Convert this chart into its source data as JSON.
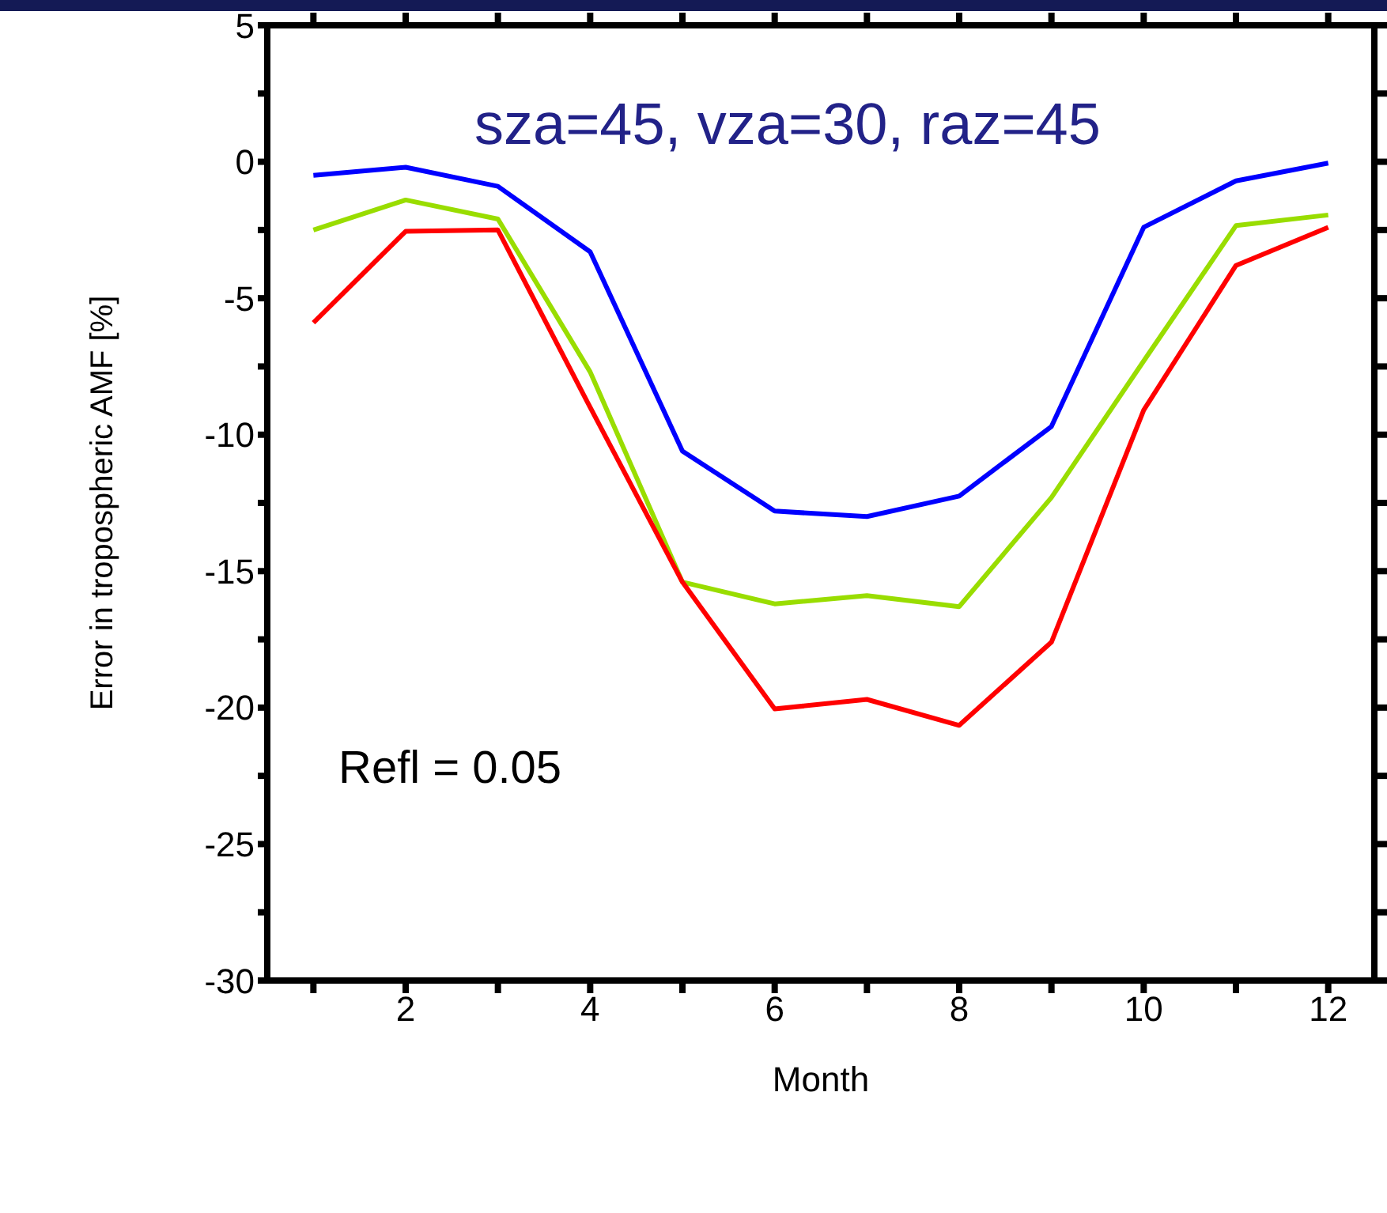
{
  "chart_data": {
    "type": "line",
    "ylabel": "Error in tropospheric AMF [%]",
    "xlabel": "Month",
    "annotations": [
      "sza=45, vza=30, raz=45",
      "Refl = 0.05"
    ],
    "x": [
      1,
      2,
      3,
      4,
      5,
      6,
      7,
      8,
      9,
      10,
      11,
      12
    ],
    "series": [
      {
        "color": "#0000ff",
        "values": [
          -0.5,
          -0.2,
          -0.9,
          -3.3,
          -10.6,
          -12.8,
          -13.0,
          -12.25,
          -9.7,
          -2.4,
          -0.7,
          -0.05
        ]
      },
      {
        "color": "#99dd00",
        "values": [
          -2.5,
          -1.4,
          -2.1,
          -7.7,
          -15.4,
          -16.2,
          -15.9,
          -16.3,
          -12.3,
          -7.3,
          -2.34,
          -1.95
        ]
      },
      {
        "color": "#ff0000",
        "values": [
          -5.9,
          -2.55,
          -2.5,
          -9.0,
          -15.4,
          -20.05,
          -19.7,
          -20.65,
          -17.6,
          -9.1,
          -3.8,
          -2.4
        ]
      }
    ],
    "xlim": [
      0.5,
      12.5
    ],
    "xticks": [
      {
        "value": 1,
        "label": null
      },
      2,
      {
        "value": 3,
        "label": null
      },
      4,
      {
        "value": 5,
        "label": null
      },
      6,
      {
        "value": 7,
        "label": null
      },
      8,
      {
        "value": 9,
        "label": null
      },
      10,
      {
        "value": 11,
        "label": null
      },
      12
    ],
    "ylim": [
      -30,
      5
    ],
    "yticks": [
      -30,
      {
        "value": -27.5,
        "label": null
      },
      -25,
      {
        "value": -22.5,
        "label": null
      },
      -20,
      {
        "value": -17.5,
        "label": null
      },
      -15,
      {
        "value": -12.5,
        "label": null
      },
      -10,
      {
        "value": -7.5,
        "label": null
      },
      -5,
      {
        "value": -2.5,
        "label": null
      },
      0,
      {
        "value": 2.5,
        "label": null
      },
      5
    ],
    "marker": "none",
    "line_style": "solid"
  }
}
